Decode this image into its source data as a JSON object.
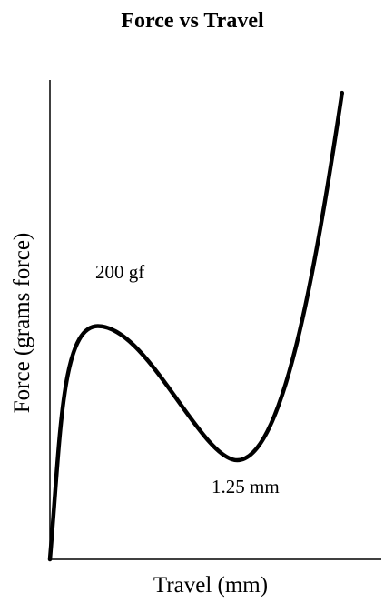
{
  "chart_data": {
    "type": "line",
    "title": "Force vs Travel",
    "xlabel": "Travel (mm)",
    "ylabel": "Force (grams force)",
    "x_ticks": [],
    "y_ticks": [],
    "grid": false,
    "series": [
      {
        "points": [
          {
            "x": 0.0,
            "y": 0
          },
          {
            "x": 0.32,
            "y": 200
          },
          {
            "x": 1.25,
            "y": 85
          },
          {
            "x": 1.95,
            "y": 400
          }
        ],
        "curve": "smooth",
        "color": "#000000"
      }
    ],
    "annotations": [
      {
        "text": "200 gf",
        "at": "peak"
      },
      {
        "text": "1.25 mm",
        "at": "valley"
      }
    ]
  }
}
